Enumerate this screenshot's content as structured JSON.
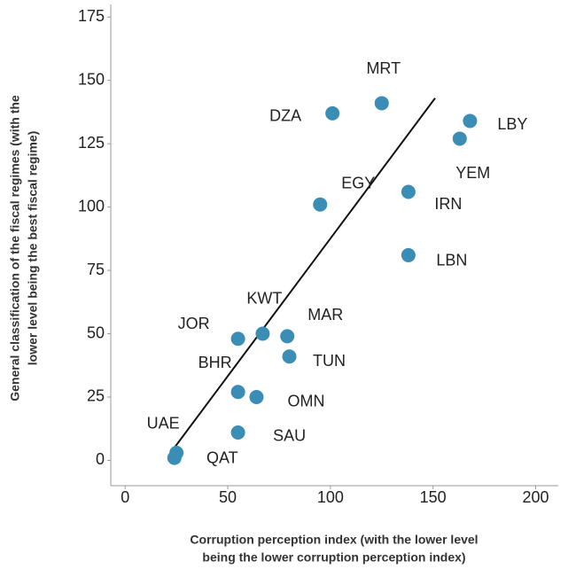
{
  "chart_data": {
    "type": "scatter",
    "x_label": [
      "Corruption perception index (with the lower level",
      "being the lower corruption perception index)"
    ],
    "y_label": [
      "General classification of the fiscal regimes (with the",
      "lower level being the best fiscal regime)"
    ],
    "labels": [
      "UAE",
      "QAT",
      "SAU",
      "BHR",
      "OMN",
      "JOR",
      "KWT",
      "MAR",
      "TUN",
      "EGY",
      "DZA",
      "MRT",
      "IRN",
      "LBN",
      "YEM",
      "LBY"
    ],
    "x": [
      25,
      24,
      55,
      55,
      64,
      55,
      67,
      79,
      80,
      95,
      101,
      125,
      138,
      138,
      163,
      168
    ],
    "y": [
      3,
      1,
      11,
      27,
      25,
      48,
      50,
      49,
      41,
      101,
      137,
      141,
      106,
      81,
      127,
      134
    ],
    "color": "#3a8db5",
    "trendline": {
      "x": [
        24,
        151
      ],
      "y": [
        5,
        143
      ]
    },
    "xlim": [
      -7,
      211
    ],
    "xticks": [
      0,
      50,
      100,
      150,
      200
    ],
    "ylim": [
      -10,
      180
    ],
    "yticks": [
      0,
      25,
      50,
      75,
      100,
      125,
      150,
      175
    ]
  }
}
